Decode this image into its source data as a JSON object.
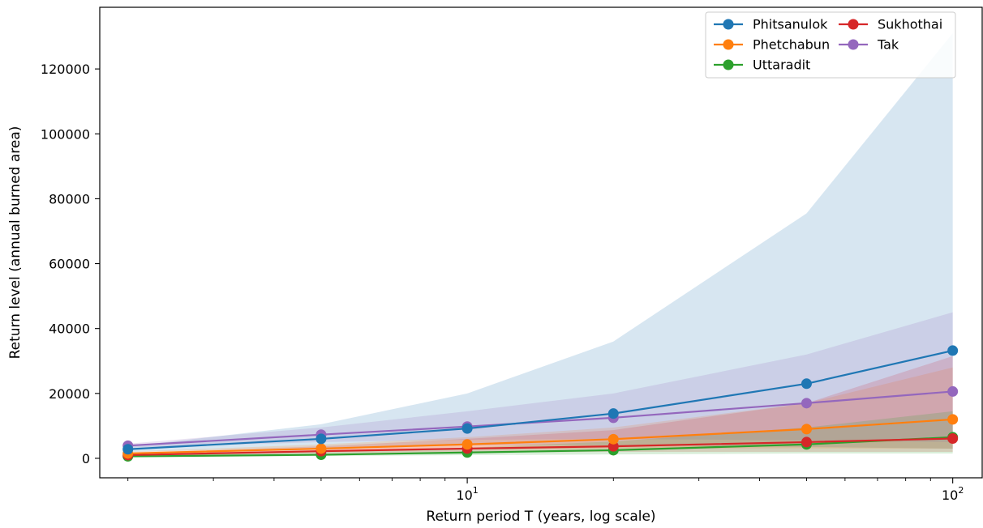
{
  "chart_data": {
    "type": "line",
    "title": "",
    "xlabel": "Return period T (years, log scale)",
    "ylabel": "Return level (annual burned area)",
    "xscale": "log",
    "xlim": [
      1.75,
      115
    ],
    "ylim": [
      -6000,
      139000
    ],
    "grid": false,
    "legend_placement": "top-right",
    "legend_columns": 2,
    "x": [
      2,
      5,
      10,
      20,
      50,
      100
    ],
    "x_ticks": [
      {
        "value": 10,
        "base": "10",
        "exp": "1"
      },
      {
        "value": 100,
        "base": "10",
        "exp": "2"
      }
    ],
    "y_ticks": [
      0,
      20000,
      40000,
      60000,
      80000,
      100000,
      120000
    ],
    "y_tick_labels": [
      "0",
      "20000",
      "40000",
      "60000",
      "80000",
      "100000",
      "120000"
    ],
    "series": [
      {
        "name": "Phitsanulok",
        "color": "#1f77b4",
        "values": [
          2800,
          6000,
          9200,
          13800,
          23000,
          33200
        ],
        "lower": [
          2000,
          3300,
          4000,
          4000,
          3500,
          3000
        ],
        "upper": [
          3600,
          10500,
          20000,
          36000,
          75500,
          131000
        ]
      },
      {
        "name": "Phetchabun",
        "color": "#ff7f0e",
        "values": [
          1500,
          3000,
          4300,
          5900,
          9000,
          12000
        ],
        "lower": [
          1100,
          2000,
          2600,
          3000,
          3100,
          3000
        ],
        "upper": [
          2000,
          4300,
          6500,
          9500,
          17000,
          28000
        ]
      },
      {
        "name": "Uttaradit",
        "color": "#2ca02c",
        "values": [
          600,
          1100,
          1800,
          2500,
          4300,
          6500
        ],
        "lower": [
          400,
          700,
          1000,
          1200,
          1500,
          1500
        ],
        "upper": [
          900,
          2000,
          3300,
          5200,
          9500,
          14500
        ]
      },
      {
        "name": "Sukhothai",
        "color": "#d62728",
        "values": [
          1000,
          2200,
          3000,
          3700,
          5000,
          6100
        ],
        "lower": [
          700,
          1400,
          1800,
          2000,
          2000,
          2000
        ],
        "upper": [
          1600,
          3700,
          6000,
          8700,
          17000,
          31500
        ]
      },
      {
        "name": "Tak",
        "color": "#9467bd",
        "values": [
          3900,
          7300,
          9800,
          12500,
          17000,
          20600
        ],
        "lower": [
          3300,
          5000,
          5700,
          6000,
          5500,
          5000
        ],
        "upper": [
          4500,
          9500,
          14500,
          20000,
          32000,
          45000
        ]
      }
    ],
    "band_order": [
      0,
      1,
      3,
      4,
      2
    ]
  }
}
